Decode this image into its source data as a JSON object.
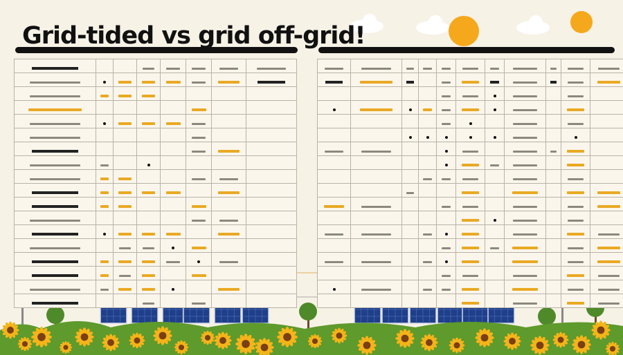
{
  "title": "Grid-tided vs grid off-grid!",
  "colors": {
    "accent": "#e9a923",
    "sun": "#f5a81c",
    "panel": "#1f3f8a",
    "grass": "#5e9a2c",
    "sunflower": "#f4b41a",
    "background": "#f7f2e6"
  },
  "left_table": {
    "rows": [
      [
        "bk",
        "",
        "",
        "t",
        "t",
        "t",
        "t",
        "t"
      ],
      [
        "t",
        "d",
        "h",
        "h",
        "h",
        "t",
        "h",
        "bk"
      ],
      [
        "t",
        "h",
        "h",
        "h",
        "",
        "",
        "",
        ""
      ],
      [
        "h",
        "",
        "",
        "",
        "",
        "h",
        "",
        ""
      ],
      [
        "t",
        "d",
        "h",
        "h",
        "h",
        "t",
        "",
        ""
      ],
      [
        "t",
        "",
        "",
        "",
        "",
        "t",
        "",
        ""
      ],
      [
        "bk",
        "",
        "",
        "",
        "",
        "t",
        "h",
        ""
      ],
      [
        "t",
        "t",
        "",
        "d",
        "",
        "",
        "",
        ""
      ],
      [
        "t",
        "h",
        "h",
        "",
        "",
        "t",
        "t",
        ""
      ],
      [
        "bk",
        "h",
        "h",
        "h",
        "h",
        "",
        "h",
        ""
      ],
      [
        "bk",
        "h",
        "h",
        "",
        "",
        "h",
        "",
        ""
      ],
      [
        "t",
        "",
        "",
        "",
        "",
        "t",
        "t",
        ""
      ],
      [
        "bk",
        "d",
        "h",
        "h",
        "h",
        "",
        "h",
        ""
      ],
      [
        "t",
        "",
        "t",
        "t",
        "d",
        "h",
        "",
        ""
      ],
      [
        "bk",
        "h",
        "h",
        "h",
        "t",
        "d",
        "t",
        ""
      ],
      [
        "bk",
        "h",
        "t",
        "h",
        "",
        "h",
        "",
        ""
      ],
      [
        "t",
        "t",
        "h",
        "h",
        "d",
        "",
        "h",
        ""
      ],
      [
        "bk",
        "",
        "",
        "t",
        "",
        "t",
        "",
        ""
      ]
    ]
  },
  "right_table": {
    "rows": [
      [
        "t",
        "t",
        "t",
        "t",
        "t",
        "t",
        "t",
        "t",
        "t",
        "t",
        "t"
      ],
      [
        "bk",
        "h",
        "bk",
        "",
        "t",
        "h",
        "bk",
        "t",
        "bk",
        "t",
        "h"
      ],
      [
        "",
        "",
        "",
        "",
        "t",
        "t",
        "d",
        "t",
        "",
        "t",
        ""
      ],
      [
        "d",
        "h",
        "d",
        "h",
        "t",
        "h",
        "d",
        "t",
        "",
        "h",
        ""
      ],
      [
        "",
        "",
        "",
        "",
        "t",
        "d",
        "",
        "t",
        "",
        "t",
        ""
      ],
      [
        "",
        "",
        "d",
        "d",
        "d",
        "d",
        "d",
        "t",
        "",
        "d",
        ""
      ],
      [
        "t",
        "t",
        "",
        "",
        "d",
        "t",
        "",
        "t",
        "t",
        "h",
        ""
      ],
      [
        "",
        "",
        "",
        "",
        "d",
        "h",
        "t",
        "t",
        "",
        "h",
        ""
      ],
      [
        "",
        "",
        "",
        "t",
        "t",
        "t",
        "",
        "t",
        "",
        "t",
        ""
      ],
      [
        "",
        "",
        "t",
        "",
        "",
        "h",
        "",
        "h",
        "",
        "h",
        "h"
      ],
      [
        "h",
        "t",
        "",
        "",
        "t",
        "t",
        "",
        "t",
        "",
        "t",
        "h"
      ],
      [
        "",
        "",
        "",
        "",
        "",
        "h",
        "d",
        "t",
        "",
        "t",
        ""
      ],
      [
        "t",
        "t",
        "",
        "t",
        "d",
        "h",
        "",
        "t",
        "",
        "h",
        "t"
      ],
      [
        "",
        "",
        "",
        "",
        "t",
        "h",
        "t",
        "h",
        "",
        "t",
        "h"
      ],
      [
        "t",
        "t",
        "",
        "t",
        "d",
        "h",
        "",
        "h",
        "",
        "t",
        "h"
      ],
      [
        "",
        "",
        "",
        "",
        "t",
        "t",
        "",
        "t",
        "",
        "h",
        "t"
      ],
      [
        "d",
        "t",
        "",
        "t",
        "t",
        "h",
        "",
        "h",
        "",
        "t",
        "t"
      ],
      [
        "",
        "",
        "",
        "",
        "",
        "h",
        "",
        "t",
        "",
        "h",
        "t"
      ]
    ]
  }
}
